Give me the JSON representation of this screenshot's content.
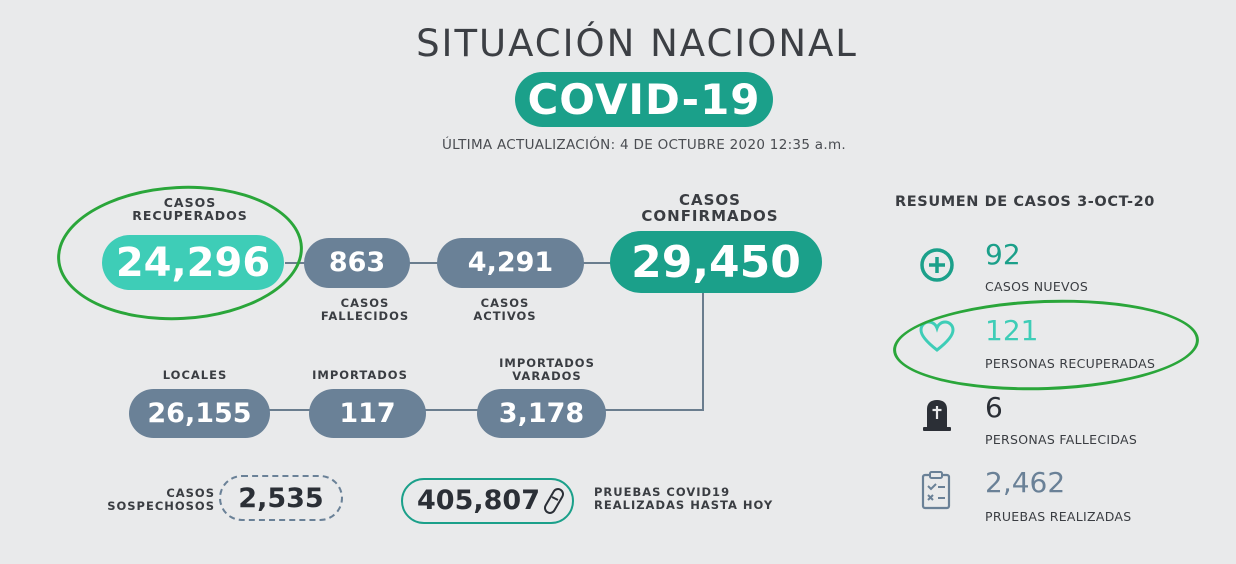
{
  "header": {
    "title": "SITUACIÓN NACIONAL",
    "badge": "COVID-19",
    "updated": "ÚLTIMA ACTUALIZACIÓN: 4 DE OCTUBRE 2020 12:35 a.m."
  },
  "flow": {
    "recuperados": {
      "label_1": "CASOS",
      "label_2": "RECUPERADOS",
      "value": "24,296"
    },
    "fallecidos": {
      "label_1": "CASOS",
      "label_2": "FALLECIDOS",
      "value": "863"
    },
    "activos": {
      "label_1": "CASOS",
      "label_2": "ACTIVOS",
      "value": "4,291"
    },
    "confirmados": {
      "label_1": "CASOS",
      "label_2": "CONFIRMADOS",
      "value": "29,450"
    },
    "locales": {
      "label": "LOCALES",
      "value": "26,155"
    },
    "importados": {
      "label": "IMPORTADOS",
      "value": "117"
    },
    "varados": {
      "label_1": "IMPORTADOS",
      "label_2": "VARADOS",
      "value": "3,178"
    }
  },
  "bottom": {
    "sospechosos": {
      "label_1": "CASOS",
      "label_2": "SOSPECHOSOS",
      "value": "2,535"
    },
    "pruebas": {
      "label_1": "PRUEBAS COVID19",
      "label_2": "REALIZADAS HASTA HOY",
      "value": "405,807",
      "icon": "test-tube-icon"
    }
  },
  "summary": {
    "title": "RESUMEN DE CASOS 3-OCT-20",
    "items": [
      {
        "value": "92",
        "label": "CASOS NUEVOS",
        "icon": "plus-circle-icon",
        "color": "#1ba08a"
      },
      {
        "value": "121",
        "label": "PERSONAS RECUPERADAS",
        "icon": "heart-icon",
        "color": "#3ecdb7"
      },
      {
        "value": "6",
        "label": "PERSONAS FALLECIDAS",
        "icon": "tombstone-icon",
        "color": "#2b2f36"
      },
      {
        "value": "2,462",
        "label": "PRUEBAS REALIZADAS",
        "icon": "clipboard-icon",
        "color": "#6a8197"
      }
    ]
  },
  "colors": {
    "background": "#e9eaeb",
    "teal": "#1ba08a",
    "mint": "#3ecdb7",
    "slate": "#6a8197",
    "highlight_oval": "#2aa63a"
  }
}
